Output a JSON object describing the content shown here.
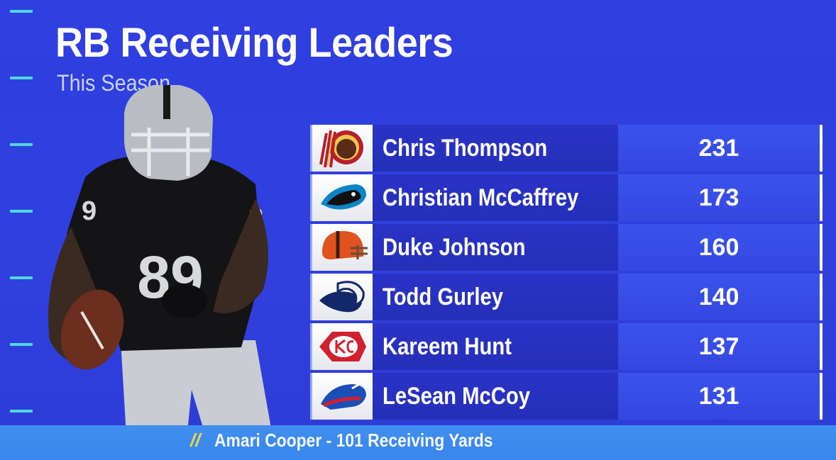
{
  "header": {
    "title": "RB Receiving Leaders",
    "subtitle": "This Season"
  },
  "player_photo": {
    "jersey_number": "89"
  },
  "leaders": [
    {
      "team_icon": "redskins-logo-icon",
      "name": "Chris Thompson",
      "yards": "231"
    },
    {
      "team_icon": "panthers-logo-icon",
      "name": "Christian McCaffrey",
      "yards": "173"
    },
    {
      "team_icon": "browns-logo-icon",
      "name": "Duke Johnson",
      "yards": "160"
    },
    {
      "team_icon": "rams-logo-icon",
      "name": "Todd Gurley",
      "yards": "140"
    },
    {
      "team_icon": "chiefs-logo-icon",
      "name": "Kareem Hunt",
      "yards": "137"
    },
    {
      "team_icon": "bills-logo-icon",
      "name": "LeSean McCoy",
      "yards": "131"
    }
  ],
  "footer": {
    "marker": "//",
    "caption": "Amari Cooper - 101 Receiving Yards"
  },
  "colors": {
    "background": "#2f3fe0",
    "accent_ticks": "#4fd8e0",
    "name_cell": "#2a32c7",
    "value_cell": "#3a52ec",
    "footer_bar": "#3f8ef0",
    "footer_marker": "#e9d84a"
  }
}
